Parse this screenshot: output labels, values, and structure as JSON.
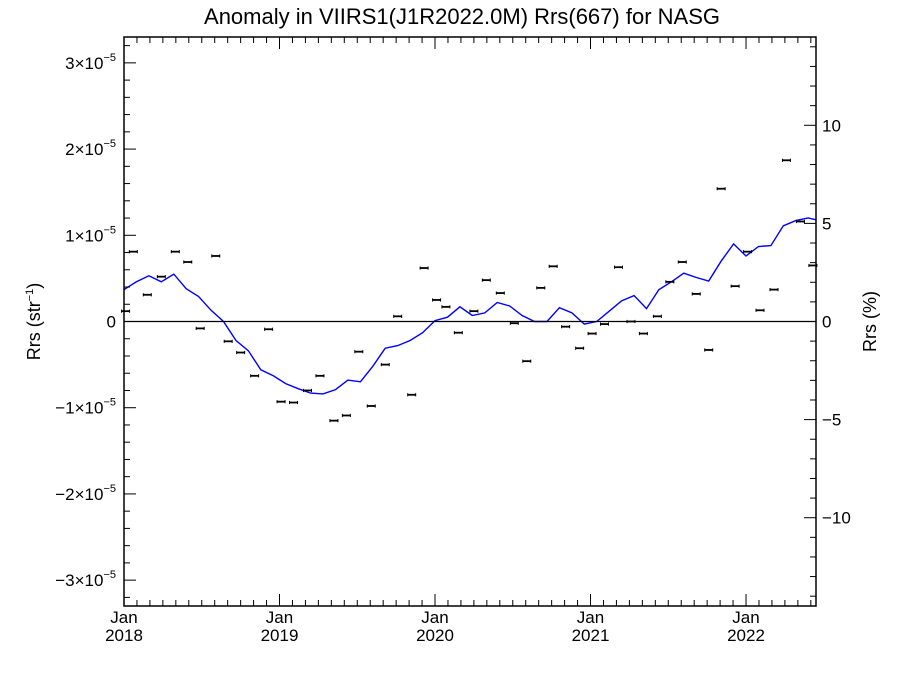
{
  "chart_data": {
    "type": "scatter",
    "title": "Anomaly in VIIRS1(J1R2022.0M) Rrs(667) for NASG",
    "ylabel_left": {
      "base": "Rrs (str",
      "sup": "−1",
      "close": ")"
    },
    "ylabel_right": "Rrs (%)",
    "xlim": [
      2018.0,
      2022.45
    ],
    "ylim": [
      -3.3e-05,
      3.3e-05
    ],
    "y2lim": [
      -14.5,
      14.5
    ],
    "grid": false,
    "legend": "none",
    "x_ticks": [
      {
        "x": 2018,
        "line1": "Jan",
        "line2": "2018"
      },
      {
        "x": 2019,
        "line1": "Jan",
        "line2": "2019"
      },
      {
        "x": 2020,
        "line1": "Jan",
        "line2": "2020"
      },
      {
        "x": 2021,
        "line1": "Jan",
        "line2": "2021"
      },
      {
        "x": 2022,
        "line1": "Jan",
        "line2": "2022"
      }
    ],
    "y_ticks": [
      {
        "value": 3e-05,
        "mant": "3",
        "exp": "−5"
      },
      {
        "value": 2e-05,
        "mant": "2",
        "exp": "−5"
      },
      {
        "value": 1e-05,
        "mant": "1",
        "exp": "−5"
      },
      {
        "value": 0,
        "mant": "0",
        "exp": ""
      },
      {
        "value": -1e-05,
        "mant": "−1",
        "exp": "−5"
      },
      {
        "value": -2e-05,
        "mant": "−2",
        "exp": "−5"
      },
      {
        "value": -3e-05,
        "mant": "−3",
        "exp": "−5"
      }
    ],
    "y2_ticks": [
      {
        "value": 10,
        "label": "10"
      },
      {
        "value": 5,
        "label": "5"
      },
      {
        "value": 0,
        "label": "0"
      },
      {
        "value": -5,
        "label": "−5"
      },
      {
        "value": -10,
        "label": "−10"
      }
    ],
    "points": [
      {
        "x": 2018.01,
        "y": 1.2e-06
      },
      {
        "x": 2018.06,
        "y": 8.1e-06
      },
      {
        "x": 2018.15,
        "y": 3.1e-06
      },
      {
        "x": 2018.24,
        "y": 5.2e-06
      },
      {
        "x": 2018.33,
        "y": 8.1e-06
      },
      {
        "x": 2018.41,
        "y": 6.9e-06
      },
      {
        "x": 2018.49,
        "y": -8e-07
      },
      {
        "x": 2018.59,
        "y": 7.6e-06
      },
      {
        "x": 2018.67,
        "y": -2.3e-06
      },
      {
        "x": 2018.75,
        "y": -3.6e-06
      },
      {
        "x": 2018.84,
        "y": -6.3e-06
      },
      {
        "x": 2018.93,
        "y": -9e-07
      },
      {
        "x": 2019.01,
        "y": -9.3e-06
      },
      {
        "x": 2019.09,
        "y": -9.4e-06
      },
      {
        "x": 2019.18,
        "y": -8e-06
      },
      {
        "x": 2019.26,
        "y": -6.3e-06
      },
      {
        "x": 2019.35,
        "y": -1.15e-05
      },
      {
        "x": 2019.43,
        "y": -1.09e-05
      },
      {
        "x": 2019.51,
        "y": -3.5e-06
      },
      {
        "x": 2019.59,
        "y": -9.8e-06
      },
      {
        "x": 2019.68,
        "y": -5e-06
      },
      {
        "x": 2019.76,
        "y": 6e-07
      },
      {
        "x": 2019.85,
        "y": -8.5e-06
      },
      {
        "x": 2019.93,
        "y": 6.2e-06
      },
      {
        "x": 2020.01,
        "y": 2.5e-06
      },
      {
        "x": 2020.07,
        "y": 1.7e-06
      },
      {
        "x": 2020.15,
        "y": -1.3e-06
      },
      {
        "x": 2020.25,
        "y": 1.2e-06
      },
      {
        "x": 2020.33,
        "y": 4.8e-06
      },
      {
        "x": 2020.42,
        "y": 3.3e-06
      },
      {
        "x": 2020.51,
        "y": -2e-07
      },
      {
        "x": 2020.59,
        "y": -4.6e-06
      },
      {
        "x": 2020.68,
        "y": 3.9e-06
      },
      {
        "x": 2020.76,
        "y": 6.4e-06
      },
      {
        "x": 2020.84,
        "y": -6e-07
      },
      {
        "x": 2020.93,
        "y": -3.1e-06
      },
      {
        "x": 2021.01,
        "y": -1.4e-06
      },
      {
        "x": 2021.09,
        "y": -3e-07
      },
      {
        "x": 2021.18,
        "y": 6.3e-06
      },
      {
        "x": 2021.26,
        "y": 0.0
      },
      {
        "x": 2021.34,
        "y": -1.4e-06
      },
      {
        "x": 2021.43,
        "y": 6e-07
      },
      {
        "x": 2021.51,
        "y": 4.6e-06
      },
      {
        "x": 2021.59,
        "y": 6.9e-06
      },
      {
        "x": 2021.68,
        "y": 3.2e-06
      },
      {
        "x": 2021.76,
        "y": -3.3e-06
      },
      {
        "x": 2021.84,
        "y": 1.54e-05
      },
      {
        "x": 2021.93,
        "y": 4.1e-06
      },
      {
        "x": 2022.01,
        "y": 8.1e-06
      },
      {
        "x": 2022.09,
        "y": 1.3e-06
      },
      {
        "x": 2022.18,
        "y": 3.7e-06
      },
      {
        "x": 2022.26,
        "y": 1.87e-05
      },
      {
        "x": 2022.35,
        "y": 1.16e-05
      },
      {
        "x": 2022.43,
        "y": 6.5e-06
      }
    ],
    "trend": [
      {
        "x": 2018.0,
        "y": 3.7e-06
      },
      {
        "x": 2018.08,
        "y": 4.6e-06
      },
      {
        "x": 2018.16,
        "y": 5.3e-06
      },
      {
        "x": 2018.24,
        "y": 4.6e-06
      },
      {
        "x": 2018.32,
        "y": 5.5e-06
      },
      {
        "x": 2018.4,
        "y": 3.8e-06
      },
      {
        "x": 2018.48,
        "y": 2.9e-06
      },
      {
        "x": 2018.56,
        "y": 1.3e-06
      },
      {
        "x": 2018.64,
        "y": 0.0
      },
      {
        "x": 2018.72,
        "y": -2.2e-06
      },
      {
        "x": 2018.8,
        "y": -3.4e-06
      },
      {
        "x": 2018.88,
        "y": -5.6e-06
      },
      {
        "x": 2018.96,
        "y": -6.3e-06
      },
      {
        "x": 2019.04,
        "y": -7.2e-06
      },
      {
        "x": 2019.12,
        "y": -7.8e-06
      },
      {
        "x": 2019.2,
        "y": -8.3e-06
      },
      {
        "x": 2019.28,
        "y": -8.4e-06
      },
      {
        "x": 2019.36,
        "y": -7.9e-06
      },
      {
        "x": 2019.44,
        "y": -6.8e-06
      },
      {
        "x": 2019.52,
        "y": -7e-06
      },
      {
        "x": 2019.6,
        "y": -5.2e-06
      },
      {
        "x": 2019.68,
        "y": -3.1e-06
      },
      {
        "x": 2019.76,
        "y": -2.8e-06
      },
      {
        "x": 2019.84,
        "y": -2.2e-06
      },
      {
        "x": 2019.92,
        "y": -1.3e-06
      },
      {
        "x": 2020.0,
        "y": 1e-07
      },
      {
        "x": 2020.08,
        "y": 5e-07
      },
      {
        "x": 2020.16,
        "y": 1.7e-06
      },
      {
        "x": 2020.24,
        "y": 7e-07
      },
      {
        "x": 2020.32,
        "y": 1e-06
      },
      {
        "x": 2020.4,
        "y": 2.2e-06
      },
      {
        "x": 2020.48,
        "y": 1.8e-06
      },
      {
        "x": 2020.56,
        "y": 7e-07
      },
      {
        "x": 2020.64,
        "y": 0.0
      },
      {
        "x": 2020.72,
        "y": 0.0
      },
      {
        "x": 2020.8,
        "y": 1.6e-06
      },
      {
        "x": 2020.88,
        "y": 1e-06
      },
      {
        "x": 2020.96,
        "y": -3e-07
      },
      {
        "x": 2021.04,
        "y": 0.0
      },
      {
        "x": 2021.12,
        "y": 1.2e-06
      },
      {
        "x": 2021.2,
        "y": 2.4e-06
      },
      {
        "x": 2021.28,
        "y": 3e-06
      },
      {
        "x": 2021.36,
        "y": 1.5e-06
      },
      {
        "x": 2021.44,
        "y": 3.7e-06
      },
      {
        "x": 2021.52,
        "y": 4.6e-06
      },
      {
        "x": 2021.6,
        "y": 5.6e-06
      },
      {
        "x": 2021.68,
        "y": 5.1e-06
      },
      {
        "x": 2021.76,
        "y": 4.7e-06
      },
      {
        "x": 2021.84,
        "y": 7e-06
      },
      {
        "x": 2021.92,
        "y": 9e-06
      },
      {
        "x": 2022.0,
        "y": 7.6e-06
      },
      {
        "x": 2022.08,
        "y": 8.7e-06
      },
      {
        "x": 2022.16,
        "y": 8.8e-06
      },
      {
        "x": 2022.24,
        "y": 1.11e-05
      },
      {
        "x": 2022.32,
        "y": 1.17e-05
      },
      {
        "x": 2022.4,
        "y": 1.2e-05
      },
      {
        "x": 2022.45,
        "y": 1.18e-05
      }
    ],
    "colors": {
      "trend": "#0000ff",
      "points": "#000000",
      "axes": "#000000"
    }
  }
}
